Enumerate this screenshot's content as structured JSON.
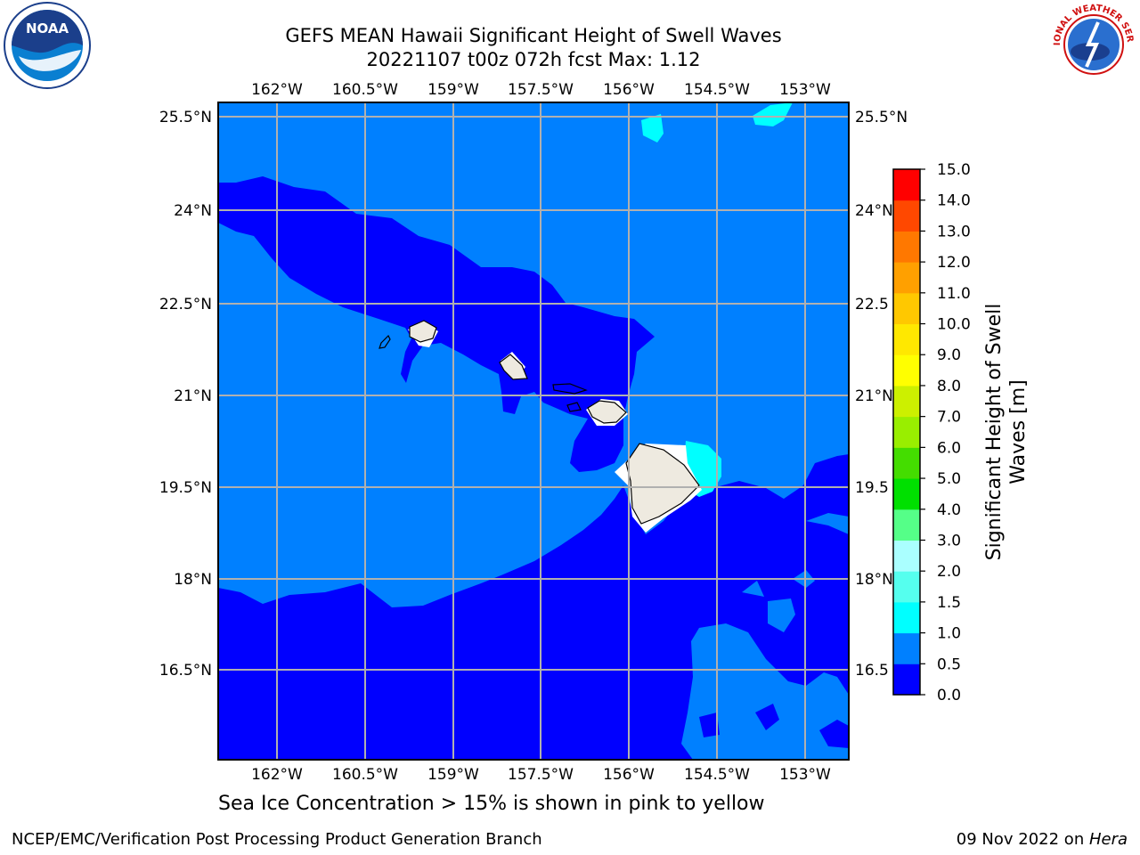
{
  "title": {
    "line1": "GEFS MEAN Hawaii Significant Height of Swell Waves",
    "line2": "20221107 t00z 072h fcst   Max: 1.12"
  },
  "map": {
    "lon_labels": [
      "162°W",
      "160.5°W",
      "159°W",
      "157.5°W",
      "156°W",
      "154.5°W",
      "153°W"
    ],
    "lat_labels_left": [
      "25.5°N",
      "24°N",
      "22.5°N",
      "21°N",
      "19.5°N",
      "18°N",
      "16.5°N"
    ],
    "lat_labels_right": [
      "25.5°N",
      "24°N",
      "22.5",
      "21°N",
      "19.5",
      "18°N",
      "16.5"
    ],
    "colors": {
      "deep": "#0000ff",
      "mid": "#0080ff",
      "light": "#00ffff",
      "land": "#eeeae0",
      "grid": "#b0b0b0"
    }
  },
  "colorbar": {
    "label_line1": "Significant Height of Swell",
    "label_line2": "Waves [m]",
    "ticks": [
      "0.0",
      "0.5",
      "1.0",
      "1.5",
      "2.0",
      "3.0",
      "4.0",
      "5.0",
      "6.0",
      "7.0",
      "8.0",
      "9.0",
      "10.0",
      "11.0",
      "12.0",
      "13.0",
      "14.0",
      "15.0"
    ],
    "colors": [
      "#0000ff",
      "#0080ff",
      "#00ffff",
      "#55ffee",
      "#aaffff",
      "#55ff88",
      "#00e000",
      "#44dd00",
      "#99ee00",
      "#ccf000",
      "#ffff00",
      "#ffe800",
      "#ffc800",
      "#ffa000",
      "#ff7800",
      "#ff4800",
      "#ff0000"
    ]
  },
  "caption": "Sea Ice Concentration > 15% is shown in pink to yellow",
  "credit_left": "NCEP/EMC/Verification Post Processing Product Generation Branch",
  "credit_date": "09 Nov 2022 on ",
  "credit_host": "Hera",
  "logos": {
    "noaa": "NOAA",
    "nws": "NATIONAL WEATHER SERVICE"
  }
}
